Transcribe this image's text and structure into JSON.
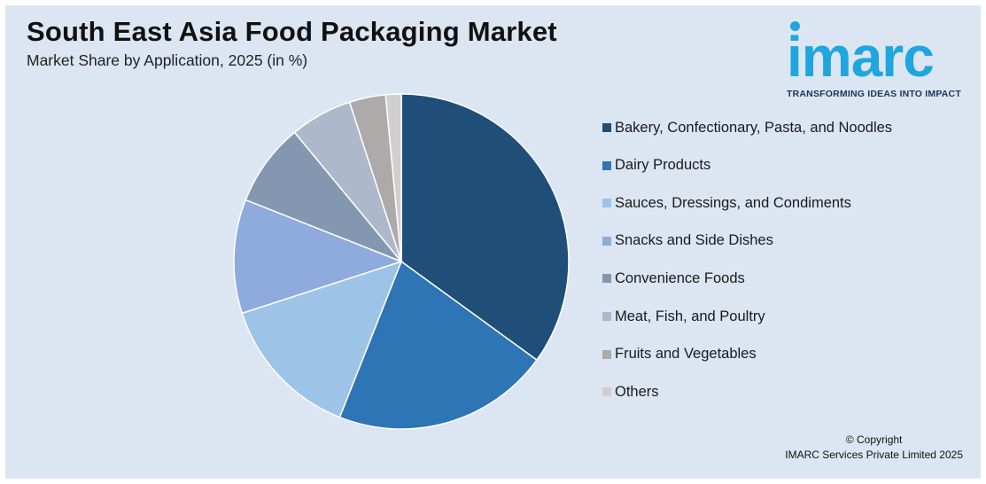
{
  "title": "South East Asia Food Packaging Market",
  "subtitle": "Market Share by Application, 2025 (in %)",
  "logo": {
    "text": "imarc",
    "tagline": "TRANSFORMING IDEAS INTO IMPACT",
    "color": "#1fa6de"
  },
  "copyright": {
    "line1": "© Copyright",
    "line2": "IMARC Services Private Limited 2025"
  },
  "chart_data": {
    "type": "pie",
    "title": "Market Share by Application, 2025 (in %)",
    "legend_position": "right",
    "slices": [
      {
        "name": "Bakery, Confectionary, Pasta, and Noodles",
        "value": 35,
        "color": "#1f4e79"
      },
      {
        "name": "Dairy Products",
        "value": 21,
        "color": "#2e75b6"
      },
      {
        "name": "Sauces, Dressings, and Condiments",
        "value": 14,
        "color": "#9dc3e6"
      },
      {
        "name": "Snacks and Side Dishes",
        "value": 11,
        "color": "#8faadc"
      },
      {
        "name": "Convenience Foods",
        "value": 8,
        "color": "#8497b0"
      },
      {
        "name": "Meat, Fish, and Poultry",
        "value": 6,
        "color": "#adb9ca"
      },
      {
        "name": "Fruits and Vegetables",
        "value": 3.5,
        "color": "#aeaaaa"
      },
      {
        "name": "Others",
        "value": 1.5,
        "color": "#d0cece"
      }
    ]
  }
}
